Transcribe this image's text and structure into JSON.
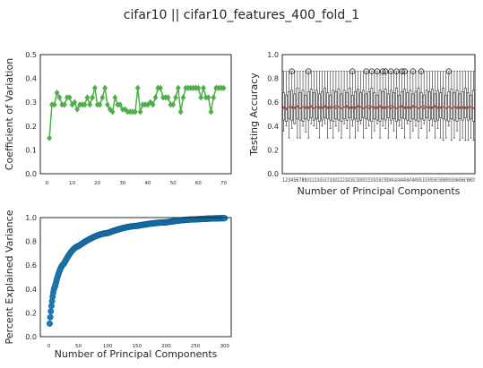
{
  "figure": {
    "suptitle": "cifar10 || cifar10_features_400_fold_1"
  },
  "chart_data": [
    {
      "type": "line",
      "id": "cv",
      "xlabel": "",
      "ylabel": "Coefficient of Variation",
      "xlim": [
        -2.6,
        73
      ],
      "ylim": [
        0.0,
        0.5
      ],
      "xticks": [
        0,
        10,
        20,
        30,
        40,
        50,
        60,
        70
      ],
      "yticks": [
        0.0,
        0.1,
        0.2,
        0.3,
        0.4,
        0.5
      ],
      "ytick_labels": [
        "0.0",
        "0.1",
        "0.2",
        "0.3",
        "0.4",
        "0.5"
      ],
      "color": "#4daf4a",
      "marker": "diamond",
      "grid": false,
      "series": [
        {
          "x": [
            1,
            2,
            3,
            4,
            5,
            6,
            7,
            8,
            9,
            10,
            11,
            12,
            13,
            14,
            15,
            16,
            17,
            18,
            19,
            20,
            21,
            22,
            23,
            24,
            25,
            26,
            27,
            28,
            29,
            30,
            31,
            32,
            33,
            34,
            35,
            36,
            37,
            38,
            39,
            40,
            41,
            42,
            43,
            44,
            45,
            46,
            47,
            48,
            49,
            50,
            51,
            52,
            53,
            54,
            55,
            56,
            57,
            58,
            59,
            60,
            61,
            62,
            63,
            64,
            65,
            66,
            67,
            68,
            69,
            70
          ],
          "y": [
            0.15,
            0.29,
            0.29,
            0.34,
            0.32,
            0.29,
            0.29,
            0.32,
            0.32,
            0.29,
            0.3,
            0.27,
            0.29,
            0.29,
            0.29,
            0.32,
            0.29,
            0.32,
            0.36,
            0.29,
            0.29,
            0.32,
            0.36,
            0.29,
            0.27,
            0.26,
            0.32,
            0.29,
            0.29,
            0.27,
            0.27,
            0.26,
            0.26,
            0.26,
            0.26,
            0.36,
            0.26,
            0.29,
            0.29,
            0.29,
            0.3,
            0.29,
            0.32,
            0.36,
            0.36,
            0.32,
            0.32,
            0.32,
            0.29,
            0.29,
            0.32,
            0.36,
            0.26,
            0.32,
            0.36,
            0.36,
            0.36,
            0.36,
            0.36,
            0.36,
            0.32,
            0.36,
            0.32,
            0.32,
            0.26,
            0.32,
            0.36,
            0.36,
            0.36,
            0.36
          ]
        }
      ]
    },
    {
      "type": "box",
      "id": "acc",
      "xlabel": "Number of Principal Components",
      "ylabel": "Testing Accuracy",
      "ylim": [
        0.0,
        1.0
      ],
      "yticks": [
        0.0,
        0.2,
        0.4,
        0.6,
        0.8,
        1.0
      ],
      "ytick_labels": [
        "0.0",
        "0.2",
        "0.4",
        "0.6",
        "0.8",
        "1.0"
      ],
      "categories": [
        "1",
        "2",
        "3",
        "4",
        "5",
        "6",
        "7",
        "8",
        "9",
        "10",
        "11",
        "12",
        "13",
        "14",
        "15",
        "16",
        "17",
        "18",
        "19",
        "20",
        "21",
        "22",
        "23",
        "24",
        "25",
        "26",
        "27",
        "28",
        "29",
        "30",
        "31",
        "32",
        "33",
        "34",
        "35",
        "36",
        "37",
        "38",
        "39",
        "40",
        "41",
        "42",
        "43",
        "44",
        "45",
        "46",
        "47",
        "48",
        "49",
        "50",
        "51",
        "52",
        "53",
        "54",
        "55",
        "56",
        "57",
        "58",
        "59",
        "60",
        "61",
        "62",
        "63",
        "64",
        "65",
        "66",
        "67",
        "68",
        "69",
        "70"
      ],
      "whisker_high": 0.86,
      "median_color": "#c0392b",
      "mean_color": "#c0392b",
      "medians": [
        0.56,
        0.54,
        0.56,
        0.55,
        0.56,
        0.57,
        0.55,
        0.56,
        0.55,
        0.56,
        0.57,
        0.55,
        0.56,
        0.55,
        0.56,
        0.57,
        0.56,
        0.55,
        0.56,
        0.57,
        0.56,
        0.55,
        0.56,
        0.57,
        0.56,
        0.55,
        0.56,
        0.57,
        0.56,
        0.55,
        0.56,
        0.57,
        0.56,
        0.55,
        0.56,
        0.57,
        0.56,
        0.55,
        0.56,
        0.57,
        0.56,
        0.55,
        0.56,
        0.57,
        0.56,
        0.55,
        0.56,
        0.57,
        0.56,
        0.55,
        0.56,
        0.57,
        0.56,
        0.55,
        0.56,
        0.57,
        0.56,
        0.55,
        0.56,
        0.55,
        0.56,
        0.55,
        0.56,
        0.55,
        0.56,
        0.55,
        0.56,
        0.55,
        0.56,
        0.55
      ],
      "q1": [
        0.45,
        0.44,
        0.46,
        0.45,
        0.42,
        0.46,
        0.45,
        0.44,
        0.46,
        0.45,
        0.47,
        0.45,
        0.46,
        0.44,
        0.45,
        0.47,
        0.46,
        0.45,
        0.44,
        0.46,
        0.45,
        0.44,
        0.46,
        0.45,
        0.47,
        0.45,
        0.46,
        0.44,
        0.45,
        0.47,
        0.46,
        0.45,
        0.44,
        0.46,
        0.45,
        0.44,
        0.46,
        0.45,
        0.47,
        0.45,
        0.46,
        0.44,
        0.45,
        0.47,
        0.46,
        0.45,
        0.44,
        0.46,
        0.45,
        0.44,
        0.46,
        0.45,
        0.47,
        0.45,
        0.46,
        0.44,
        0.45,
        0.47,
        0.46,
        0.45,
        0.44,
        0.46,
        0.45,
        0.44,
        0.46,
        0.45,
        0.47,
        0.45,
        0.46,
        0.44
      ],
      "q3": [
        0.68,
        0.66,
        0.69,
        0.7,
        0.67,
        0.72,
        0.68,
        0.7,
        0.66,
        0.69,
        0.71,
        0.68,
        0.7,
        0.67,
        0.69,
        0.72,
        0.68,
        0.66,
        0.7,
        0.69,
        0.71,
        0.67,
        0.7,
        0.68,
        0.72,
        0.66,
        0.69,
        0.71,
        0.68,
        0.7,
        0.67,
        0.69,
        0.72,
        0.68,
        0.66,
        0.7,
        0.69,
        0.71,
        0.67,
        0.7,
        0.68,
        0.72,
        0.66,
        0.69,
        0.71,
        0.68,
        0.7,
        0.67,
        0.69,
        0.72,
        0.68,
        0.66,
        0.7,
        0.69,
        0.71,
        0.67,
        0.7,
        0.68,
        0.72,
        0.66,
        0.69,
        0.71,
        0.68,
        0.7,
        0.67,
        0.69,
        0.72,
        0.68,
        0.66,
        0.7
      ],
      "whisker_low": [
        0.36,
        0.4,
        0.3,
        0.38,
        0.42,
        0.3,
        0.3,
        0.4,
        0.35,
        0.3,
        0.42,
        0.4,
        0.38,
        0.3,
        0.4,
        0.42,
        0.3,
        0.38,
        0.3,
        0.4,
        0.36,
        0.3,
        0.42,
        0.38,
        0.3,
        0.4,
        0.3,
        0.36,
        0.42,
        0.3,
        0.38,
        0.4,
        0.3,
        0.36,
        0.42,
        0.3,
        0.4,
        0.38,
        0.3,
        0.42,
        0.36,
        0.3,
        0.4,
        0.38,
        0.3,
        0.42,
        0.3,
        0.36,
        0.4,
        0.3,
        0.38,
        0.42,
        0.3,
        0.36,
        0.4,
        0.3,
        0.38,
        0.3,
        0.28,
        0.3,
        0.4,
        0.28,
        0.3,
        0.36,
        0.28,
        0.3,
        0.28,
        0.28,
        0.3,
        0.28
      ],
      "means": [
        0.55,
        0.55,
        0.56,
        0.56,
        0.55,
        0.56,
        0.55,
        0.56,
        0.56,
        0.55,
        0.56,
        0.55,
        0.56,
        0.56,
        0.55,
        0.56,
        0.55,
        0.56,
        0.56,
        0.55,
        0.56,
        0.55,
        0.56,
        0.56,
        0.55,
        0.56,
        0.55,
        0.56,
        0.56,
        0.55,
        0.56,
        0.55,
        0.56,
        0.56,
        0.55,
        0.56,
        0.55,
        0.56,
        0.56,
        0.55,
        0.56,
        0.55,
        0.56,
        0.56,
        0.55,
        0.56,
        0.55,
        0.56,
        0.56,
        0.55,
        0.56,
        0.55,
        0.56,
        0.56,
        0.55,
        0.56,
        0.55,
        0.56,
        0.56,
        0.55,
        0.56,
        0.55,
        0.56,
        0.56,
        0.55,
        0.56,
        0.55,
        0.56,
        0.56,
        0.55
      ],
      "outliers_high": [
        {
          "category": "4",
          "value": 0.86
        },
        {
          "category": "10",
          "value": 0.86
        },
        {
          "category": "26",
          "value": 0.86
        },
        {
          "category": "31",
          "value": 0.86
        },
        {
          "category": "33",
          "value": 0.86
        },
        {
          "category": "35",
          "value": 0.86
        },
        {
          "category": "37",
          "value": 0.86
        },
        {
          "category": "38",
          "value": 0.86
        },
        {
          "category": "40",
          "value": 0.86
        },
        {
          "category": "42",
          "value": 0.86
        },
        {
          "category": "44",
          "value": 0.86
        },
        {
          "category": "45",
          "value": 0.86
        },
        {
          "category": "48",
          "value": 0.86
        },
        {
          "category": "51",
          "value": 0.86
        },
        {
          "category": "61",
          "value": 0.86
        }
      ],
      "grid": false
    },
    {
      "type": "scatter",
      "id": "pev",
      "xlabel": "Number of Principal Components",
      "ylabel": "Percent Explained Variance",
      "xlim": [
        -15,
        311
      ],
      "ylim": [
        0.0,
        1.0
      ],
      "xticks": [
        0,
        50,
        100,
        150,
        200,
        250,
        300
      ],
      "yticks": [
        0.0,
        0.2,
        0.4,
        0.6,
        0.8,
        1.0
      ],
      "ytick_labels": [
        "0.0",
        "0.2",
        "0.4",
        "0.6",
        "0.8",
        "1.0"
      ],
      "color": "#1f77b4",
      "marker_edge": "#0b5e8e",
      "n_points": 300,
      "curve": "1 - 0.9*(x+1)^-0.62 (approximate, cumulative explained variance)",
      "anchor_points": [
        [
          1,
          0.11
        ],
        [
          10,
          0.42
        ],
        [
          25,
          0.61
        ],
        [
          50,
          0.76
        ],
        [
          100,
          0.87
        ],
        [
          150,
          0.93
        ],
        [
          200,
          0.96
        ],
        [
          250,
          0.985
        ],
        [
          300,
          0.995
        ]
      ],
      "grid": false
    }
  ]
}
